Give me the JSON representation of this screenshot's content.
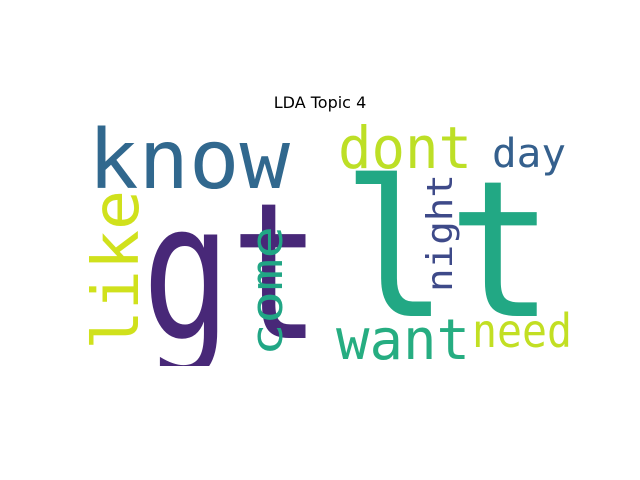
{
  "title": "LDA Topic 4",
  "words": [
    {
      "text": "gt",
      "color": "#482878"
    },
    {
      "text": "lt",
      "color": "#22a884"
    },
    {
      "text": "know",
      "color": "#31688e"
    },
    {
      "text": "dont",
      "color": "#bddf26"
    },
    {
      "text": "day",
      "color": "#35608d"
    },
    {
      "text": "like",
      "color": "#d0e11c"
    },
    {
      "text": "night",
      "color": "#3e4a89"
    },
    {
      "text": "come",
      "color": "#21a685"
    },
    {
      "text": "want",
      "color": "#26ad81"
    },
    {
      "text": "need",
      "color": "#c2df23"
    }
  ]
}
